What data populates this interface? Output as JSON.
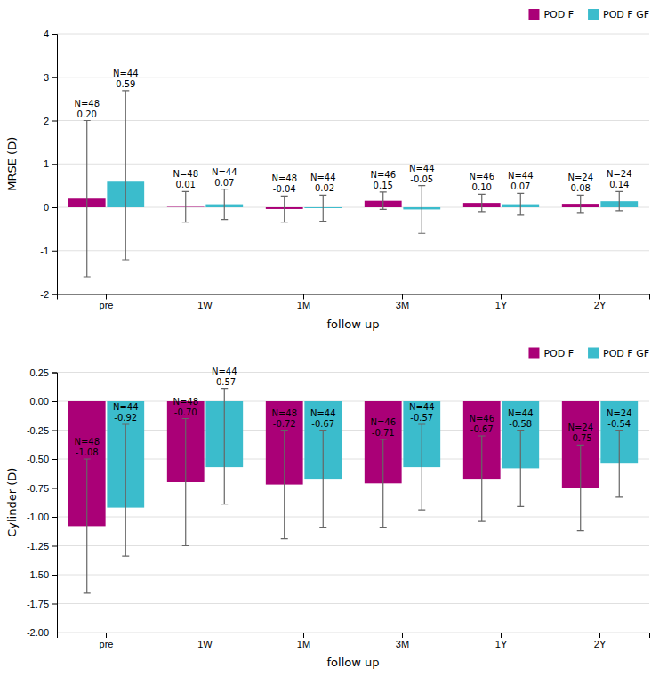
{
  "chart_data": [
    {
      "type": "bar",
      "categories": [
        "pre",
        "1W",
        "1M",
        "3M",
        "1Y",
        "2Y"
      ],
      "series": [
        {
          "name": "POD F",
          "color": "#AA0077",
          "values": [
            0.2,
            0.01,
            -0.04,
            0.15,
            0.1,
            0.08
          ],
          "value_labels": [
            "0.20",
            "0.01",
            "-0.04",
            "0.15",
            "0.10",
            "0.08"
          ],
          "err_low": [
            1.8,
            0.35,
            0.3,
            0.2,
            0.2,
            0.2
          ],
          "err_high": [
            1.8,
            0.35,
            0.3,
            0.2,
            0.2,
            0.2
          ],
          "n_labels": [
            "N=48",
            "N=48",
            "N=48",
            "N=46",
            "N=46",
            "N=24"
          ]
        },
        {
          "name": "POD F GF",
          "color": "#3BBCCC",
          "values": [
            0.59,
            0.07,
            -0.02,
            -0.05,
            0.07,
            0.14
          ],
          "value_labels": [
            "0.59",
            "0.07",
            "-0.02",
            "-0.05",
            "0.07",
            "0.14"
          ],
          "err_low": [
            1.8,
            0.35,
            0.3,
            0.55,
            0.25,
            0.22
          ],
          "err_high": [
            2.1,
            0.35,
            0.3,
            0.55,
            0.25,
            0.22
          ],
          "n_labels": [
            "N=44",
            "N=44",
            "N=44",
            "N=44",
            "N=44",
            "N=24"
          ]
        }
      ],
      "ylim": [
        -2.0,
        4.0
      ],
      "yticks": [
        -2,
        -1,
        0,
        1,
        2,
        3,
        4
      ],
      "ylabel": "MRSE (D)",
      "xlabel": "follow up",
      "grid": true,
      "legend": "upper right",
      "data_labels": true
    },
    {
      "type": "bar",
      "categories": [
        "pre",
        "1W",
        "1M",
        "3M",
        "1Y",
        "2Y"
      ],
      "series": [
        {
          "name": "POD F",
          "color": "#AA0077",
          "values": [
            -1.08,
            -0.7,
            -0.72,
            -0.71,
            -0.67,
            -0.75
          ],
          "value_labels": [
            "-1.08",
            "-0.70",
            "-0.72",
            "-0.71",
            "-0.67",
            "-0.75"
          ],
          "err_low": [
            0.58,
            0.55,
            0.47,
            0.38,
            0.37,
            0.37
          ],
          "err_high": [
            0.58,
            0.55,
            0.47,
            0.38,
            0.37,
            0.37
          ],
          "n_labels": [
            "N=48",
            "N=48",
            "N=48",
            "N=46",
            "N=46",
            "N=24"
          ]
        },
        {
          "name": "POD F GF",
          "color": "#3BBCCC",
          "values": [
            -0.92,
            -0.57,
            -0.67,
            -0.57,
            -0.58,
            -0.54
          ],
          "value_labels": [
            "-0.92",
            "-0.57",
            "-0.67",
            "-0.57",
            "-0.58",
            "-0.54"
          ],
          "err_low": [
            0.42,
            0.32,
            0.42,
            0.37,
            0.33,
            0.29
          ],
          "err_high": [
            0.72,
            0.68,
            0.42,
            0.37,
            0.33,
            0.29
          ],
          "n_labels": [
            "N=44",
            "N=44",
            "N=44",
            "N=44",
            "N=44",
            "N=24"
          ]
        }
      ],
      "ylim": [
        -2.0,
        0.25
      ],
      "yticks": [
        {
          "value": -2.0,
          "label": "-2.00"
        },
        -1.75,
        {
          "value": -1.5,
          "label": "-1.50"
        },
        -1.25,
        {
          "value": -1.0,
          "label": "-1.00"
        },
        -0.75,
        {
          "value": -0.5,
          "label": "-0.50"
        },
        -0.25,
        {
          "value": 0.0,
          "label": "0.00"
        },
        0.25
      ],
      "ylabel": "Cylinder (D)",
      "xlabel": "follow up",
      "grid": true,
      "legend": "upper right",
      "data_labels": true
    }
  ]
}
